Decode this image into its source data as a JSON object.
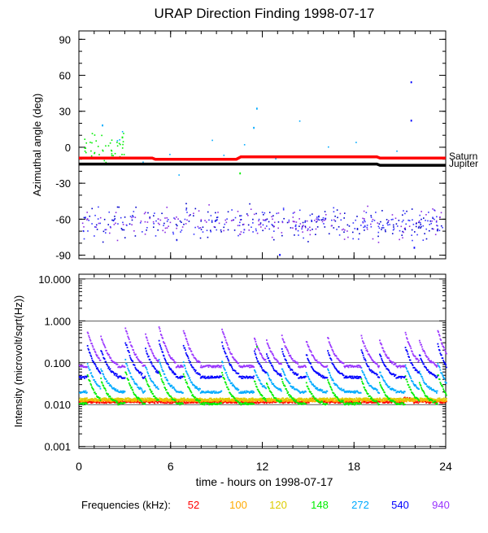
{
  "chart_data": [
    {
      "type": "scatter",
      "title": "URAP Direction Finding  1998-07-17",
      "ylabel": "Azimuthal angle (deg)",
      "ylim": [
        -93,
        97
      ],
      "yticks": [
        -90,
        -60,
        -30,
        0,
        30,
        60,
        90
      ],
      "ytick_labels": [
        "-90",
        "-60",
        "-30",
        "0",
        "30",
        "60",
        "90"
      ],
      "xlim": [
        0,
        24
      ],
      "reference_lines": [
        {
          "name": "Saturn",
          "label": "Saturn",
          "color": "#ff0000",
          "points": [
            [
              0,
              -9
            ],
            [
              4.8,
              -9
            ],
            [
              5.0,
              -10
            ],
            [
              10.3,
              -10
            ],
            [
              10.6,
              -8
            ],
            [
              19.5,
              -8
            ],
            [
              19.7,
              -9
            ],
            [
              24,
              -9
            ]
          ]
        },
        {
          "name": "Jupiter",
          "label": "Jupiter",
          "color": "#000000",
          "points": [
            [
              0,
              -14
            ],
            [
              19.5,
              -14
            ],
            [
              19.7,
              -15
            ],
            [
              24,
              -15
            ]
          ]
        }
      ],
      "scatter_clusters": [
        {
          "name": "low-azimuth cluster",
          "colors": [
            "#3333ff",
            "#0000cc",
            "#8a2be2"
          ],
          "x_range": [
            0.2,
            23.8
          ],
          "y_center": -63,
          "y_spread": 9
        },
        {
          "name": "near-zero points 148 kHz",
          "colors": [
            "#00ee00"
          ],
          "x_range": [
            0.3,
            3.0
          ],
          "y_center": -2,
          "y_spread": 9
        },
        {
          "name": "scattered 272 kHz",
          "colors": [
            "#00aaff"
          ],
          "x_range": [
            0.5,
            22
          ],
          "y_center": 5,
          "y_spread": 20
        }
      ],
      "outliers": [
        {
          "x": 21.7,
          "y": 55,
          "color": "#0000ff"
        },
        {
          "x": 21.7,
          "y": 23,
          "color": "#0000ff"
        },
        {
          "x": 11.6,
          "y": 33,
          "color": "#00aaff"
        },
        {
          "x": 11.4,
          "y": 17,
          "color": "#00aaff"
        },
        {
          "x": 10.5,
          "y": -21,
          "color": "#00ee00"
        },
        {
          "x": 1.5,
          "y": 19,
          "color": "#00aaff"
        },
        {
          "x": 2.8,
          "y": 9,
          "color": "#00ee00"
        },
        {
          "x": 21.9,
          "y": -83,
          "color": "#0000ff"
        },
        {
          "x": 13.1,
          "y": -89,
          "color": "#0000ff"
        }
      ]
    },
    {
      "type": "line",
      "ylabel": "Intensity (microvolt/sqrt(Hz))",
      "yscale": "log",
      "ylim": [
        0.0009,
        13
      ],
      "yticks": [
        0.001,
        0.01,
        0.1,
        1.0,
        10.0
      ],
      "ytick_labels": [
        "0.001",
        "0.010",
        "0.100",
        "1.000",
        "10.000"
      ],
      "xlim": [
        0,
        24
      ],
      "xticks": [
        0,
        6,
        12,
        18,
        24
      ],
      "xtick_labels": [
        "0",
        "6",
        "12",
        "18",
        "24"
      ],
      "xlabel": "time - hours on 1998-07-17",
      "spike_times": [
        0.5,
        1.4,
        3.0,
        4.3,
        5.2,
        6.8,
        9.3,
        11.4,
        12.2,
        13.2,
        14.8,
        16.2,
        18.4,
        19.6,
        21.3,
        22.2,
        23.4
      ],
      "series": [
        {
          "name": "52",
          "color": "#ff0000",
          "baseline": 0.0115,
          "bump": [
            [
              15.0,
              0.0135
            ],
            [
              21.2,
              0.014
            ]
          ]
        },
        {
          "name": "100",
          "color": "#ffaa00",
          "baseline": 0.0125
        },
        {
          "name": "120",
          "color": "#ddcc00",
          "baseline": 0.0135
        },
        {
          "name": "148",
          "color": "#00ee00",
          "baseline": 0.0105,
          "spike_peak": 0.038
        },
        {
          "name": "272",
          "color": "#00aaff",
          "baseline": 0.02,
          "spike_peak": 0.07
        },
        {
          "name": "540",
          "color": "#0000ff",
          "baseline": 0.045,
          "spike_peak": 0.2
        },
        {
          "name": "940",
          "color": "#9933ff",
          "baseline": 0.082,
          "spike_peak": 0.45
        }
      ],
      "legend_label": "Frequencies (kHz):"
    }
  ]
}
